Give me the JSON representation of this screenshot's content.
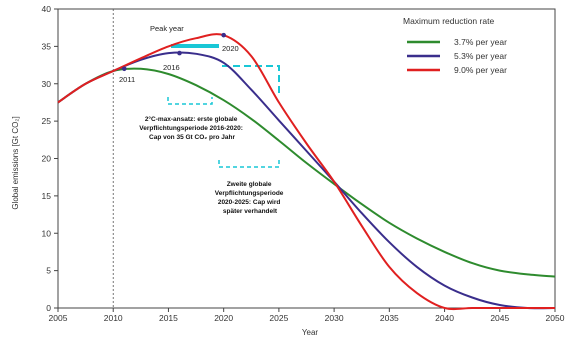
{
  "chart_data": {
    "type": "line",
    "title": "",
    "xlabel": "Year",
    "ylabel": "Global emissions [Gt CO₂]",
    "xlim": [
      2005,
      2050
    ],
    "ylim": [
      0,
      40
    ],
    "x_ticks": [
      "2005",
      "2010",
      "2015",
      "2020",
      "2025",
      "2030",
      "2035",
      "2040",
      "2045",
      "2050"
    ],
    "y_ticks": [
      "0",
      "5",
      "10",
      "15",
      "20",
      "25",
      "30",
      "35",
      "40"
    ],
    "grid": false,
    "legend_title": "Maximum reduction rate",
    "legend_position": "top-right",
    "series": [
      {
        "name": "3.7% per year",
        "color": "#2e8b2e",
        "x": [
          2005,
          2007.5,
          2010,
          2012.5,
          2015,
          2017.5,
          2020,
          2022.5,
          2025,
          2027.5,
          2030,
          2032.5,
          2035,
          2037.5,
          2040,
          2042.5,
          2045,
          2047.5,
          2050
        ],
        "y": [
          27.5,
          30.0,
          31.7,
          32.0,
          31.3,
          29.8,
          27.8,
          25.3,
          22.4,
          19.4,
          16.6,
          13.9,
          11.4,
          9.3,
          7.5,
          6.0,
          5.0,
          4.5,
          4.2
        ]
      },
      {
        "name": "5.3% per year",
        "color": "#3a2e8c",
        "x": [
          2005,
          2007.5,
          2010,
          2012.5,
          2015,
          2017.5,
          2020,
          2022.5,
          2025,
          2027.5,
          2030,
          2032.5,
          2035,
          2037.5,
          2040,
          2042.5,
          2045,
          2047.5,
          2050
        ],
        "y": [
          27.5,
          30.0,
          31.7,
          33.2,
          34.1,
          34.0,
          32.8,
          29.2,
          25.1,
          21.0,
          16.9,
          12.7,
          8.8,
          5.5,
          3.0,
          1.4,
          0.4,
          0,
          0
        ]
      },
      {
        "name": "9.0% per year",
        "color": "#e02020",
        "x": [
          2005,
          2007.5,
          2010,
          2012.5,
          2015,
          2017.5,
          2020,
          2022.5,
          2025,
          2027.5,
          2030,
          2032.5,
          2035,
          2037.5,
          2040,
          2042.5,
          2045,
          2047.5,
          2050
        ],
        "y": [
          27.5,
          30.0,
          31.7,
          33.4,
          35.0,
          36.1,
          36.5,
          33.7,
          27.5,
          22.0,
          16.9,
          11.0,
          5.5,
          2.0,
          0,
          0,
          0,
          0,
          0
        ]
      }
    ],
    "annotations": {
      "peak_year": "Peak year",
      "year_2011": "2011",
      "year_2016": "2016",
      "year_2020": "2020",
      "box1_lines": [
        "2°C-max-ansatz: erste globale",
        "Verpflichtungsperiode 2016-2020:",
        "Cap von 35 Gt CO₂ pro Jahr"
      ],
      "box2_lines": [
        "Zweite globale",
        "Verpflichtungsperiode",
        "2020-2025: Cap wird",
        "später verhandelt"
      ],
      "reference_year": 2010,
      "peak_points": [
        {
          "label_key": "year_2011",
          "x": 2011,
          "y": 32.0
        },
        {
          "label_key": "year_2016",
          "x": 2016,
          "y": 34.1
        },
        {
          "label_key": "year_2020",
          "x": 2020,
          "y": 36.5
        }
      ]
    }
  }
}
